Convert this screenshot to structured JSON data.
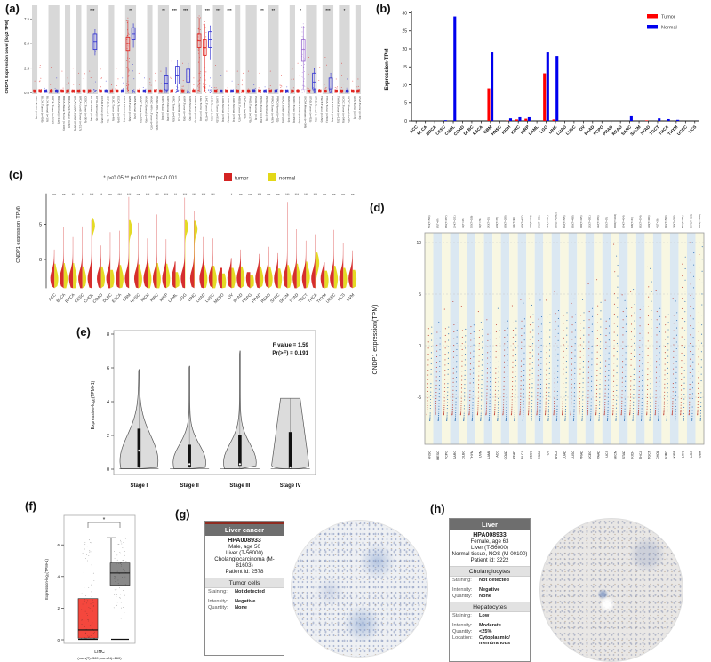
{
  "figure": {
    "panel_labels": {
      "a": "(a)",
      "b": "(b)",
      "c": "(c)",
      "d": "(d)",
      "e": "(e)",
      "f": "(f)",
      "g": "(g)",
      "h": "(h)"
    }
  },
  "chart_data": [
    {
      "id": "a",
      "type": "box-scatter",
      "ylabel": "CNDP1 Expression Level (log2 TPM)",
      "yticks": [
        "0.0",
        "2.5",
        "5.0",
        "7.5"
      ],
      "ytick_values": [
        0,
        2.5,
        5,
        7.5
      ],
      "colors": {
        "t": "#e0201b",
        "n": "#2a2ad0",
        "m": "#9a6bd0"
      },
      "labels": [
        "ACC.Tumor (n=79)",
        "BLCA.Tumor (n=408)",
        "BLCA.Normal (n=19)",
        "BRCA.Tumor (n=1093)",
        "BRCA.Normal (n=112)",
        "BRCA-Basal.Tumor (n=190)",
        "BRCA-Her2.Tumor (n=82)",
        "BRCA-LumA.Tumor (n=564)",
        "BRCA-LumB.Tumor (n=217)",
        "CESC.Tumor (n=304)",
        "CHOL.Tumor (n=36)",
        "CHOL.Normal (n=9)",
        "COAD.Tumor (n=457)",
        "COAD.Normal (n=41)",
        "DLBC.Tumor (n=48)",
        "ESCA.Tumor (n=184)",
        "ESCA.Normal (n=11)",
        "GBM.Tumor (n=153)",
        "GBM.Normal (n=5)",
        "HNSC.Tumor (n=520)",
        "HNSC.Normal (n=44)",
        "HNSC-HPV+.Tumor (n=97)",
        "HNSC-HPV-.Tumor (n=421)",
        "KICH.Tumor (n=66)",
        "KICH.Normal (n=25)",
        "KIRC.Tumor (n=533)",
        "KIRC.Normal (n=72)",
        "KIRP.Tumor (n=290)",
        "KIRP.Normal (n=32)",
        "LAML.Tumor (n=173)",
        "LGG.Tumor (n=516)",
        "LIHC.Tumor (n=371)",
        "LIHC.Normal (n=50)",
        "LUAD.Tumor (n=515)",
        "LUAD.Normal (n=59)",
        "LUSC.Tumor (n=501)",
        "LUSC.Normal (n=51)",
        "MESO.Tumor (n=87)",
        "OV.Tumor (n=303)",
        "PAAD.Tumor (n=178)",
        "PAAD.Normal (n=4)",
        "PCPG.Tumor (n=179)",
        "PCPG.Normal (n=3)",
        "PRAD.Tumor (n=497)",
        "PRAD.Normal (n=52)",
        "READ.Tumor (n=166)",
        "READ.Normal (n=10)",
        "SARC.Tumor (n=259)",
        "SKCM.Tumor (n=103)",
        "SKCM.Metastasis (n=368)",
        "STAD.Tumor (n=415)",
        "STAD.Normal (n=35)",
        "TGCT.Tumor (n=150)",
        "THCA.Tumor (n=501)",
        "THCA.Normal (n=59)",
        "THYM.Tumor (n=120)",
        "UCEC.Tumor (n=545)",
        "UCEC.Normal (n=35)",
        "UCS.Tumor (n=57)",
        "UVM.Tumor (n=80)"
      ],
      "types": [
        "t",
        "t",
        "n",
        "t",
        "n",
        "t",
        "t",
        "t",
        "t",
        "t",
        "t",
        "n",
        "t",
        "n",
        "t",
        "t",
        "n",
        "t",
        "n",
        "t",
        "n",
        "t",
        "t",
        "t",
        "n",
        "t",
        "n",
        "t",
        "n",
        "t",
        "t",
        "t",
        "n",
        "t",
        "n",
        "t",
        "n",
        "t",
        "t",
        "t",
        "n",
        "t",
        "n",
        "t",
        "n",
        "t",
        "n",
        "t",
        "t",
        "m",
        "t",
        "n",
        "t",
        "t",
        "n",
        "t",
        "t",
        "n",
        "t",
        "t"
      ],
      "max": [
        1.2,
        2.8,
        0.9,
        2.6,
        1.5,
        2.2,
        1.5,
        2.5,
        2.0,
        2.6,
        2.2,
        6.4,
        2.4,
        1.2,
        0.8,
        2.5,
        1.5,
        7.6,
        7.0,
        2.0,
        1.5,
        1.4,
        2.0,
        2.2,
        2.6,
        3.2,
        3.3,
        3.0,
        3.0,
        1.5,
        7.8,
        7.2,
        6.8,
        2.8,
        1.8,
        2.2,
        1.2,
        2.2,
        2.0,
        2.2,
        0.8,
        2.0,
        0.6,
        2.2,
        1.6,
        1.8,
        0.6,
        2.4,
        3.0,
        7.0,
        3.6,
        2.4,
        2.6,
        3.6,
        2.0,
        1.4,
        3.0,
        1.4,
        1.2,
        1.4
      ],
      "dense": [
        17,
        30,
        31,
        49
      ],
      "boxes": {
        "11": [
          4.4,
          5.2,
          6.0,
          3.8,
          6.4
        ],
        "17": [
          4.3,
          5.0,
          5.6,
          0.1,
          7.4
        ],
        "18": [
          5.4,
          6.0,
          6.6,
          4.6,
          7.0
        ],
        "24": [
          0.3,
          1.0,
          1.8,
          0.02,
          2.6
        ],
        "26": [
          0.9,
          1.8,
          2.7,
          0.1,
          3.3
        ],
        "28": [
          1.1,
          1.7,
          2.4,
          0.2,
          3.0
        ],
        "30": [
          4.6,
          5.3,
          6.0,
          0.1,
          7.6
        ],
        "31": [
          3.8,
          4.6,
          5.4,
          0.1,
          7.0
        ],
        "32": [
          4.6,
          5.4,
          6.2,
          3.4,
          6.8
        ],
        "49": [
          3.2,
          4.4,
          5.4,
          0.3,
          6.8
        ],
        "51": [
          0.4,
          1.1,
          2.0,
          0.02,
          2.5
        ],
        "54": [
          0.4,
          0.9,
          1.5,
          0.02,
          2.0
        ]
      },
      "stars": {
        "CHOL": "***",
        "GBM": "**",
        "KICH": "**",
        "KIRC": "***",
        "KIRP": "***",
        "LIHC": "***",
        "LUAD": "***",
        "LUSC": "***",
        "PCPG": "**",
        "PRAD": "**",
        "SKCM": "*",
        "THCA": "***",
        "UCEC": "*"
      }
    },
    {
      "id": "b",
      "type": "bar",
      "ylabel": "Expression-TPM",
      "ylim": [
        0,
        30
      ],
      "yticks": [
        0,
        5,
        10,
        15,
        20,
        25,
        30
      ],
      "legend": [
        {
          "label": "Tumor",
          "color": "#ff0000"
        },
        {
          "label": "Normal",
          "color": "#0000ee"
        }
      ],
      "categories": [
        "ACC",
        "BLCA",
        "BRCA",
        "CESC",
        "CHOL",
        "COAD",
        "DLBC",
        "ESCA",
        "GBM",
        "HNSC",
        "KICH",
        "KIRC",
        "KIRP",
        "LAML",
        "LGG",
        "LIHC",
        "LUAD",
        "LUSC",
        "OV",
        "PAAD",
        "PCPG",
        "PRAD",
        "READ",
        "SARC",
        "SKCM",
        "STAD",
        "TGCT",
        "THCA",
        "THYM",
        "UCEC",
        "UCS"
      ],
      "series": [
        {
          "name": "Tumor",
          "color": "#ff0000",
          "values": [
            0,
            0,
            0,
            0,
            0,
            0,
            0,
            0,
            9,
            0,
            0.1,
            0.4,
            0.6,
            0,
            13.2,
            0.4,
            0,
            0,
            0,
            0,
            0,
            0,
            0,
            0,
            0,
            0.15,
            0,
            0,
            0,
            0,
            0
          ]
        },
        {
          "name": "Normal",
          "color": "#0000ee",
          "values": [
            0,
            0,
            0,
            0.2,
            29,
            0,
            0,
            0,
            19,
            0,
            0.7,
            1.0,
            1.0,
            0,
            19,
            18,
            0,
            0,
            0,
            0,
            0,
            0,
            0,
            1.5,
            0,
            0,
            0.7,
            0.5,
            0.3,
            0,
            0
          ]
        }
      ]
    },
    {
      "id": "c",
      "type": "split-violin",
      "title": "* p<0.05 ** p<0.01 *** p<-0.001",
      "ylabel": "CNDP1 expression (TPM)",
      "yticks": [
        0,
        5
      ],
      "legend": [
        {
          "label": "tumor",
          "color": "#d42322"
        },
        {
          "label": "normal",
          "color": "#e3d818"
        }
      ],
      "categories": [
        "ACC",
        "BLCA",
        "BRCA",
        "CESC",
        "CHOL",
        "COAD",
        "DLBC",
        "ESCA",
        "GBM",
        "HNSC",
        "KICH",
        "KIRC",
        "KIRP",
        "LAML",
        "LGG",
        "LIHC",
        "LUAD",
        "LUSC",
        "MESO",
        "OV",
        "PAAD",
        "PCPG",
        "PRAD",
        "READ",
        "SARC",
        "SKCM",
        "STAD",
        "TGCT",
        "THCA",
        "THYM",
        "UCEC",
        "UCS",
        "UVM"
      ],
      "significance": [
        "ns",
        "ns",
        "**",
        "*",
        "***",
        "**",
        "ns",
        "***",
        "***",
        "ns",
        "***",
        "***",
        "***",
        "**",
        "***",
        "***",
        "***",
        "***",
        "",
        "*",
        "ns",
        "ns",
        "***",
        "ns",
        "ns",
        "***",
        "***",
        "***",
        "***",
        "ns",
        "ns",
        "ns",
        "ns"
      ],
      "tumor_max": [
        1.4,
        4.6,
        3.2,
        4.7,
        5.6,
        2.0,
        3.9,
        4.1,
        8.9,
        5.2,
        3.0,
        6.4,
        2.9,
        -0.3,
        8.8,
        6.9,
        3.2,
        3.0,
        -1.2,
        0.2,
        1.4,
        -1.8,
        0.8,
        1.8,
        0.9,
        8.2,
        4.3,
        2.7,
        3.6,
        -0.4,
        4.2,
        2.3,
        1.3
      ],
      "normal_max": [
        -0.6,
        -0.5,
        -0.5,
        -1.0,
        5.9,
        -1.0,
        -1.5,
        -0.8,
        5.6,
        -0.7,
        -0.5,
        -0.5,
        -0.6,
        -1.8,
        5.6,
        5.5,
        -0.8,
        -0.9,
        -2.0,
        -1.2,
        -1.0,
        -2.2,
        -1.0,
        -1.0,
        -1.3,
        -0.8,
        -0.6,
        -0.3,
        1.0,
        -1.6,
        -0.9,
        -1.2,
        -1.5
      ],
      "normal_mid": [
        -2.8,
        -2.8,
        -2.8,
        -2.8,
        4.8,
        -2.8,
        -2.8,
        -2.8,
        4.4,
        -2.8,
        -2.8,
        -2.8,
        -2.8,
        -3.2,
        4.6,
        4.3,
        -2.8,
        -2.8,
        -3.2,
        -2.8,
        -2.8,
        -3.2,
        -2.8,
        -2.8,
        -2.8,
        -2.8,
        -2.8,
        -2.5,
        -0.5,
        -3.0,
        -2.8,
        -2.8,
        -2.8
      ]
    },
    {
      "id": "d",
      "type": "strip-dot",
      "ylabel": "CNDP1 expression(TPM)",
      "yticks": [
        10,
        5,
        0,
        -5
      ],
      "stripe_colors": [
        "#f8f7e2",
        "#cfe0ed"
      ],
      "dot_colors": {
        "red": "#c0453a",
        "blue": "#3273b5"
      },
      "categories": [
        "HNSC",
        "MESO",
        "PCPG",
        "SARC",
        "DLBC",
        "THYM",
        "UVM",
        "LAML",
        "ACC",
        "COAD",
        "READ",
        "BLCA",
        "CESC",
        "ESCA",
        "OV",
        "BRCA",
        "LUAD",
        "LUSC",
        "PRAD",
        "UCEC",
        "PAAD",
        "UCS",
        "SKCM",
        "STAD",
        "KICH",
        "THCA",
        "TGCT",
        "CHOL",
        "KIRC",
        "KIRP",
        "LIHC",
        "LGG",
        "GBM"
      ],
      "top_labels": [
        "564(T=516)",
        "87(T=87)",
        "186(T=177)",
        "264(T=261)",
        "49(T=47)",
        "565(T=119)",
        "79(T=79)",
        "243(T=10)",
        "209(T=77)",
        "639(T=299)",
        "411(T=93)",
        "439(T=407)",
        "319(T=304)",
        "848(T=181)",
        "515(T=427)",
        "1391(T=1092)",
        "862(T=515)",
        "836(T=498)",
        "648(T=495)",
        "282(T=181)",
        "392(T=176)",
        "135(T=57)",
        "1282(T=102)",
        "624(T=414)",
        "118(T=66)",
        "892(T=504)",
        "319(T=146)",
        "46(T=36)",
        "631(T=530)",
        "349(T=288)",
        "521(T=371)",
        "1676(T=523)",
        "1223(T=166)"
      ],
      "max_values": [
        1.8,
        1.4,
        1.8,
        2.2,
        1.6,
        2.0,
        1.6,
        1.2,
        2.2,
        2.4,
        2.4,
        2.6,
        3.0,
        2.8,
        3.0,
        3.4,
        3.2,
        3.0,
        3.2,
        3.6,
        4.2,
        2.6,
        7.8,
        3.6,
        4.0,
        3.8,
        6.2,
        3.6,
        3.0,
        3.2,
        8.6,
        9.0,
        9.6
      ]
    },
    {
      "id": "e",
      "type": "violin",
      "ylabel": "Expression-log₂(TPM+1)",
      "yticks": [
        0,
        2,
        4,
        6,
        8
      ],
      "annotation": [
        "F value = 1.59",
        "Pr(>F) = 0.191"
      ],
      "categories": [
        "Stage I",
        "Stage II",
        "Stage III",
        "Stage IV"
      ],
      "violins": [
        {
          "top": 5.9,
          "base_w": 21,
          "sigma": 1.5,
          "center": 0.5,
          "q1": 0.1,
          "q3": 2.4,
          "med": 1.1,
          "flat": false
        },
        {
          "top": 6.1,
          "base_w": 18,
          "sigma": 1.05,
          "center": 0.4,
          "q1": 0.15,
          "q3": 1.45,
          "med": 0.3,
          "flat": false
        },
        {
          "top": 7.0,
          "base_w": 18,
          "sigma": 1.1,
          "center": 0.4,
          "q1": 0.2,
          "q3": 2.05,
          "med": 0.3,
          "flat": false
        },
        {
          "top": 4.2,
          "base_w": 21,
          "flat_top_w": 11,
          "q1": 0.05,
          "q3": 2.2,
          "med": 0.1,
          "flat": true
        }
      ]
    },
    {
      "id": "f",
      "type": "box-jitter",
      "ylabel": "Expression-log₂(TPM+1)",
      "yticks": [
        0,
        2,
        4,
        6
      ],
      "xlabel1": "LIHC",
      "xlabel2": "(num(T)=369; num(N)=160)",
      "sig": "*",
      "red_box": {
        "q1": 0.1,
        "med": 0.62,
        "q3": 2.6,
        "color": "#f4473d"
      },
      "gray_box": {
        "q1": 3.45,
        "med": 4.22,
        "q3": 4.85,
        "whisker_top": 6.45,
        "color": "#8a8a8a"
      }
    }
  ],
  "panel_g": {
    "label": "(g)",
    "header": "Liver cancer",
    "sample_id": "HPA008933",
    "lines": [
      "Male, age 50",
      "Liver (T-56000)",
      "Cholangiocarcinoma (M-81603)",
      "Patient id: 2578"
    ],
    "sections": [
      {
        "title": "Tumor cells",
        "rows": [
          [
            "Staining:",
            "Not detected"
          ],
          [
            "Intensity:",
            "Negative"
          ],
          [
            "Quantity:",
            "None"
          ]
        ]
      }
    ]
  },
  "panel_h": {
    "label": "(h)",
    "header": "Liver",
    "sample_id": "HPA008933",
    "lines": [
      "Female, age 63",
      "Liver (T-56000)",
      "Normal tissue, NOS (M-00100)",
      "Patient id: 3222"
    ],
    "sections": [
      {
        "title": "Cholangiocytes",
        "rows": [
          [
            "Staining:",
            "Not detected"
          ],
          [
            "Intensity:",
            "Negative"
          ],
          [
            "Quantity:",
            "None"
          ]
        ]
      },
      {
        "title": "Hepatocytes",
        "rows": [
          [
            "Staining:",
            "Low"
          ],
          [
            "Intensity:",
            "Moderate"
          ],
          [
            "Quantity:",
            "<25%"
          ],
          [
            "Location:",
            "Cytoplasmic/ membranous"
          ]
        ]
      }
    ]
  }
}
